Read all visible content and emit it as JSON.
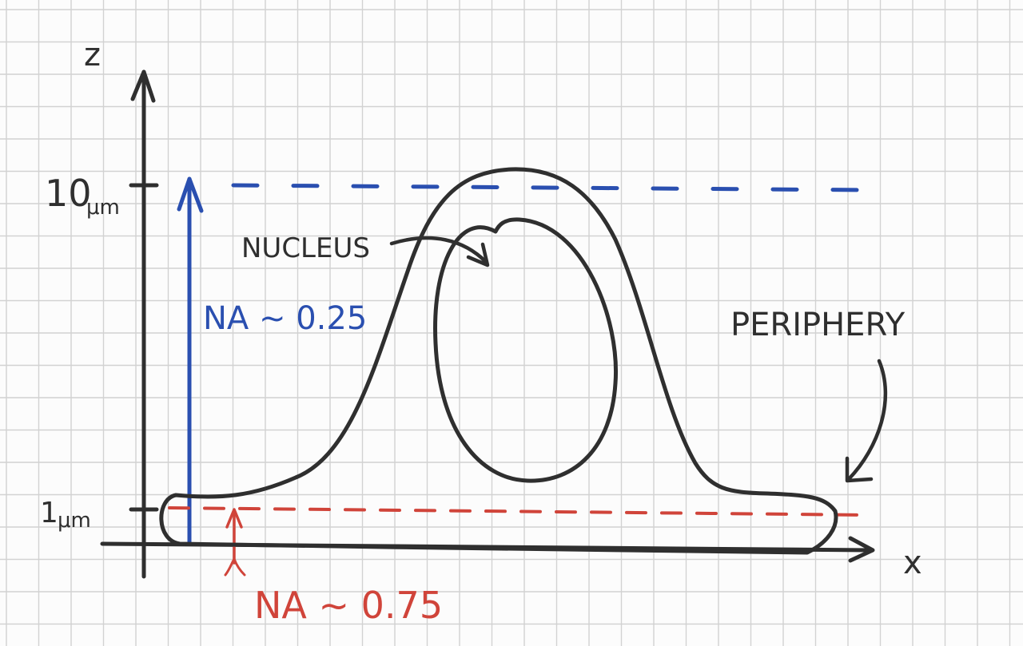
{
  "axes": {
    "z_label": "z",
    "x_label": "x",
    "tick_top": {
      "number": "10",
      "unit": "μm"
    },
    "tick_bottom": {
      "number": "1",
      "unit": "μm"
    }
  },
  "annotations": {
    "nucleus": "NUCLEUS",
    "periphery": "PERIPHERY",
    "na_high": "NA ~ 0.25",
    "na_low": "NA ~ 0.75"
  },
  "colors": {
    "ink": "#2f2f2f",
    "blue": "#2a4fb0",
    "red": "#d0443a",
    "grid": "#d2d2d2"
  }
}
